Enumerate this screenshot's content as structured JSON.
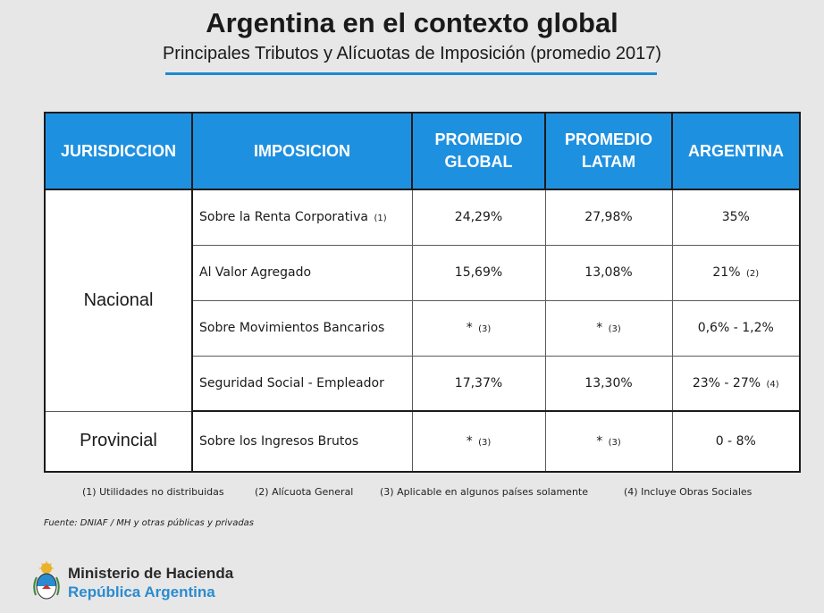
{
  "title": "Argentina en el contexto global",
  "subtitle": "Principales Tributos y Alícuotas de Imposición (promedio 2017)",
  "table": {
    "headers": {
      "jurisdiccion": "JURISDICCION",
      "imposicion": "IMPOSICION",
      "global_line1": "PROMEDIO",
      "global_line2": "GLOBAL",
      "latam_line1": "PROMEDIO",
      "latam_line2": "LATAM",
      "argentina": "ARGENTINA"
    },
    "groups": {
      "nacional": "Nacional",
      "provincial": "Provincial"
    },
    "rows": [
      {
        "imposicion": "Sobre la Renta Corporativa",
        "imposicion_note": "(1)",
        "global": "24,29%",
        "global_note": "",
        "latam": "27,98%",
        "latam_note": "",
        "argentina": "35%",
        "argentina_note": ""
      },
      {
        "imposicion": "Al Valor Agregado",
        "imposicion_note": "",
        "global": "15,69%",
        "global_note": "",
        "latam": "13,08%",
        "latam_note": "",
        "argentina": "21%",
        "argentina_note": "(2)"
      },
      {
        "imposicion": "Sobre Movimientos Bancarios",
        "imposicion_note": "",
        "global": "*",
        "global_note": "(3)",
        "latam": "*",
        "latam_note": "(3)",
        "argentina": "0,6% - 1,2%",
        "argentina_note": ""
      },
      {
        "imposicion": "Seguridad Social - Empleador",
        "imposicion_note": "",
        "global": "17,37%",
        "global_note": "",
        "latam": "13,30%",
        "latam_note": "",
        "argentina": "23% - 27%",
        "argentina_note": "(4)"
      },
      {
        "imposicion": "Sobre los Ingresos Brutos",
        "imposicion_note": "",
        "global": "*",
        "global_note": "(3)",
        "latam": "*",
        "latam_note": "(3)",
        "argentina": "0 - 8%",
        "argentina_note": ""
      }
    ]
  },
  "footnotes": [
    "(1) Utilidades no distribuidas",
    "(2) Alícuota General",
    "(3) Aplicable en algunos países  solamente",
    "(4) Incluye Obras Sociales"
  ],
  "source": "Fuente: DNIAF / MH y otras públicas y privadas",
  "ministry": {
    "line1": "Ministerio de Hacienda",
    "line2": "República Argentina",
    "emblem_icon": "coat-of-arms-icon"
  },
  "colors": {
    "header_blue": "#1e90e0",
    "rule_blue": "#1e88d2",
    "brand_blue": "#2b8bd0"
  }
}
